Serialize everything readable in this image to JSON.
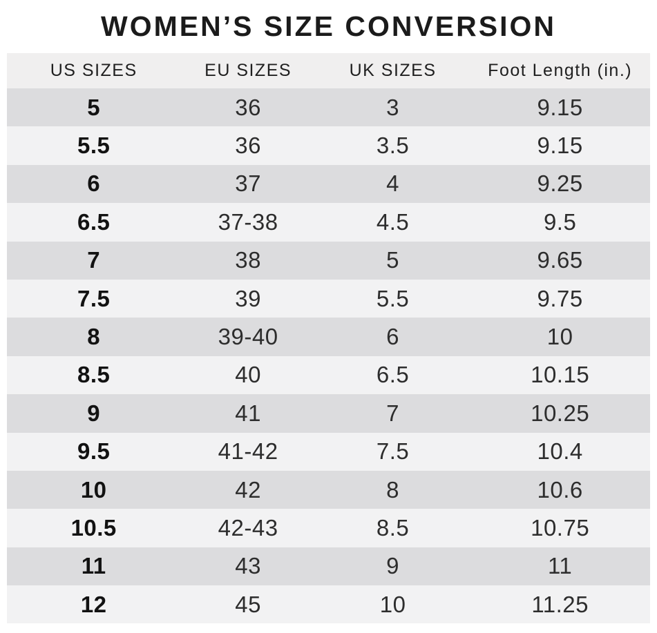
{
  "title": "WOMEN’S SIZE CONVERSION",
  "colors": {
    "row_dark": "#dcdcde",
    "row_light": "#f2f2f3",
    "header_bg": "#f0efef",
    "title_text": "#1b1b1b",
    "data_text": "#2d2d2d"
  },
  "chart_data": {
    "type": "table",
    "title": "WOMEN’S SIZE CONVERSION",
    "columns": [
      "US SIZES",
      "EU SIZES",
      "UK SIZES",
      "Foot Length (in.)"
    ],
    "rows": [
      [
        "5",
        "36",
        "3",
        "9.15"
      ],
      [
        "5.5",
        "36",
        "3.5",
        "9.15"
      ],
      [
        "6",
        "37",
        "4",
        "9.25"
      ],
      [
        "6.5",
        "37-38",
        "4.5",
        "9.5"
      ],
      [
        "7",
        "38",
        "5",
        "9.65"
      ],
      [
        "7.5",
        "39",
        "5.5",
        "9.75"
      ],
      [
        "8",
        "39-40",
        "6",
        "10"
      ],
      [
        "8.5",
        "40",
        "6.5",
        "10.15"
      ],
      [
        "9",
        "41",
        "7",
        "10.25"
      ],
      [
        "9.5",
        "41-42",
        "7.5",
        "10.4"
      ],
      [
        "10",
        "42",
        "8",
        "10.6"
      ],
      [
        "10.5",
        "42-43",
        "8.5",
        "10.75"
      ],
      [
        "11",
        "43",
        "9",
        "11"
      ],
      [
        "12",
        "45",
        "10",
        "11.25"
      ]
    ],
    "layout": {
      "row_striping": "alternating dark/light starting dark",
      "first_column_bold": true,
      "alignment": "center"
    }
  }
}
